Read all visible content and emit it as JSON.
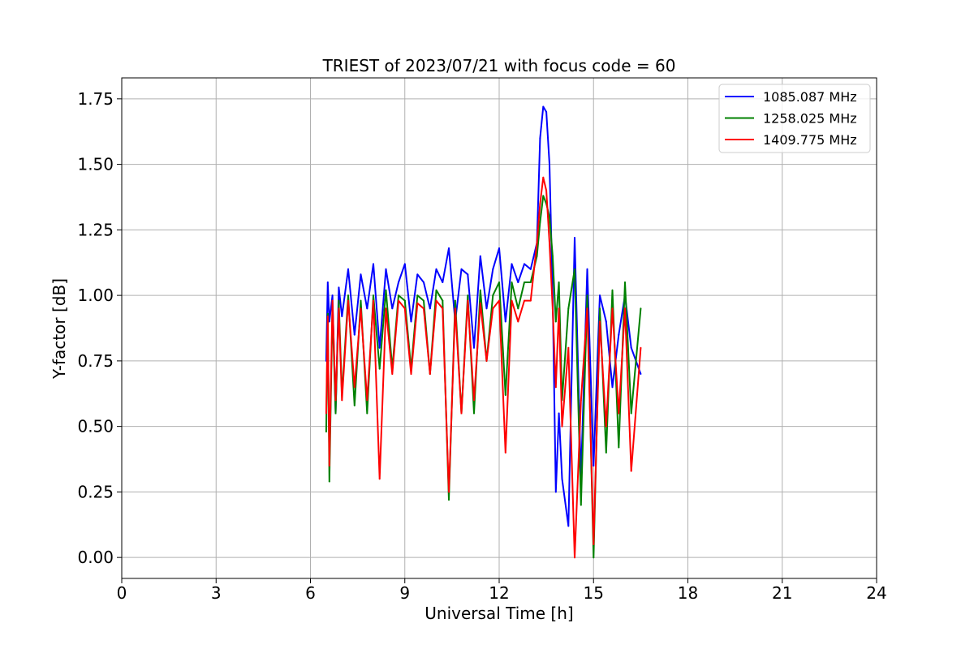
{
  "chart_data": {
    "type": "line",
    "title": "TRIEST of 2023/07/21 with focus code = 60",
    "xlabel": "Universal Time [h]",
    "ylabel": "Y-factor [dB]",
    "xlim": [
      0,
      24
    ],
    "ylim": [
      -0.08,
      1.83
    ],
    "x_ticks": [
      0,
      3,
      6,
      9,
      12,
      15,
      18,
      21,
      24
    ],
    "x_tick_labels": [
      "0",
      "3",
      "6",
      "9",
      "12",
      "15",
      "18",
      "21",
      "24"
    ],
    "y_ticks": [
      0.0,
      0.25,
      0.5,
      0.75,
      1.0,
      1.25,
      1.5,
      1.75
    ],
    "y_tick_labels": [
      "0.00",
      "0.25",
      "0.50",
      "0.75",
      "1.00",
      "1.25",
      "1.50",
      "1.75"
    ],
    "grid": true,
    "legend_position": "top-right",
    "series": [
      {
        "name": "1085.087 MHz",
        "color": "#0000ff",
        "x": [
          6.5,
          6.55,
          6.6,
          6.7,
          6.8,
          6.9,
          7.0,
          7.2,
          7.4,
          7.6,
          7.8,
          8.0,
          8.2,
          8.4,
          8.6,
          8.8,
          9.0,
          9.2,
          9.4,
          9.6,
          9.8,
          10.0,
          10.2,
          10.4,
          10.6,
          10.8,
          11.0,
          11.2,
          11.4,
          11.6,
          11.8,
          12.0,
          12.2,
          12.4,
          12.6,
          12.8,
          13.0,
          13.2,
          13.3,
          13.4,
          13.5,
          13.6,
          13.7,
          13.8,
          13.9,
          14.0,
          14.2,
          14.4,
          14.6,
          14.8,
          15.0,
          15.2,
          15.4,
          15.6,
          15.8,
          16.0,
          16.2,
          16.5
        ],
        "y": [
          0.75,
          1.05,
          0.9,
          1.0,
          0.55,
          1.03,
          0.92,
          1.1,
          0.85,
          1.08,
          0.95,
          1.12,
          0.8,
          1.1,
          0.95,
          1.05,
          1.12,
          0.9,
          1.08,
          1.05,
          0.95,
          1.1,
          1.05,
          1.18,
          0.9,
          1.1,
          1.08,
          0.8,
          1.15,
          0.95,
          1.1,
          1.18,
          0.9,
          1.12,
          1.05,
          1.12,
          1.1,
          1.2,
          1.6,
          1.72,
          1.7,
          1.5,
          1.0,
          0.25,
          0.55,
          0.3,
          0.12,
          1.22,
          0.3,
          1.1,
          0.35,
          1.0,
          0.9,
          0.65,
          0.85,
          1.0,
          0.8,
          0.7
        ]
      },
      {
        "name": "1258.025 MHz",
        "color": "#008000",
        "x": [
          6.5,
          6.55,
          6.6,
          6.7,
          6.8,
          6.9,
          7.0,
          7.2,
          7.4,
          7.6,
          7.8,
          8.0,
          8.2,
          8.4,
          8.6,
          8.8,
          9.0,
          9.2,
          9.4,
          9.6,
          9.8,
          10.0,
          10.2,
          10.4,
          10.6,
          10.8,
          11.0,
          11.2,
          11.4,
          11.6,
          11.8,
          12.0,
          12.2,
          12.4,
          12.6,
          12.8,
          13.0,
          13.2,
          13.3,
          13.4,
          13.5,
          13.6,
          13.7,
          13.8,
          13.9,
          14.0,
          14.2,
          14.4,
          14.6,
          14.8,
          15.0,
          15.2,
          15.4,
          15.6,
          15.8,
          16.0,
          16.2,
          16.5
        ],
        "y": [
          0.48,
          0.93,
          0.29,
          0.95,
          0.55,
          0.98,
          0.62,
          1.0,
          0.58,
          0.98,
          0.55,
          1.0,
          0.72,
          1.02,
          0.72,
          1.0,
          0.98,
          0.72,
          1.0,
          0.98,
          0.7,
          1.02,
          0.98,
          0.22,
          0.98,
          0.55,
          1.0,
          0.55,
          1.02,
          0.75,
          1.0,
          1.05,
          0.62,
          1.05,
          0.95,
          1.05,
          1.05,
          1.15,
          1.28,
          1.38,
          1.35,
          1.3,
          1.15,
          0.9,
          1.05,
          0.6,
          0.95,
          1.1,
          0.2,
          1.0,
          0.0,
          0.95,
          0.4,
          1.02,
          0.42,
          1.05,
          0.55,
          0.95
        ]
      },
      {
        "name": "1409.775 MHz",
        "color": "#ff0000",
        "x": [
          6.5,
          6.55,
          6.6,
          6.7,
          6.8,
          6.9,
          7.0,
          7.2,
          7.4,
          7.6,
          7.8,
          8.0,
          8.2,
          8.4,
          8.6,
          8.8,
          9.0,
          9.2,
          9.4,
          9.6,
          9.8,
          10.0,
          10.2,
          10.4,
          10.6,
          10.8,
          11.0,
          11.2,
          11.4,
          11.6,
          11.8,
          12.0,
          12.2,
          12.4,
          12.6,
          12.8,
          13.0,
          13.2,
          13.3,
          13.4,
          13.5,
          13.6,
          13.7,
          13.8,
          13.9,
          14.0,
          14.2,
          14.4,
          14.6,
          14.8,
          15.0,
          15.2,
          15.4,
          15.6,
          15.8,
          16.0,
          16.2,
          16.5
        ],
        "y": [
          0.55,
          0.92,
          0.35,
          0.98,
          0.6,
          0.95,
          0.6,
          0.98,
          0.65,
          0.95,
          0.6,
          0.98,
          0.3,
          0.95,
          0.7,
          0.98,
          0.95,
          0.7,
          0.97,
          0.95,
          0.7,
          0.98,
          0.95,
          0.25,
          0.95,
          0.55,
          0.98,
          0.6,
          0.97,
          0.75,
          0.95,
          0.98,
          0.4,
          0.98,
          0.9,
          0.98,
          0.98,
          1.2,
          1.35,
          1.45,
          1.4,
          1.2,
          0.95,
          0.65,
          0.95,
          0.5,
          0.8,
          0.0,
          0.6,
          0.95,
          0.05,
          0.9,
          0.5,
          0.95,
          0.55,
          0.95,
          0.33,
          0.8
        ]
      }
    ]
  }
}
